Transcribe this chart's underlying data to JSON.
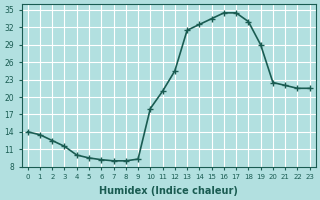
{
  "x": [
    0,
    1,
    2,
    3,
    4,
    5,
    6,
    7,
    8,
    9,
    10,
    11,
    12,
    13,
    14,
    15,
    16,
    17,
    18,
    19,
    20,
    21,
    22,
    23
  ],
  "y": [
    14.0,
    13.5,
    12.5,
    11.5,
    10.0,
    9.5,
    9.2,
    9.0,
    9.0,
    9.3,
    18.0,
    21.0,
    24.5,
    31.5,
    32.5,
    33.5,
    34.5,
    34.5,
    33.0,
    29.0,
    22.5,
    22.0,
    21.5,
    21.5
  ],
  "xlim": [
    -0.5,
    23.5
  ],
  "ylim": [
    8,
    36
  ],
  "yticks": [
    8,
    11,
    14,
    17,
    20,
    23,
    26,
    29,
    32,
    35
  ],
  "xticks": [
    0,
    1,
    2,
    3,
    4,
    5,
    6,
    7,
    8,
    9,
    10,
    11,
    12,
    13,
    14,
    15,
    16,
    17,
    18,
    19,
    20,
    21,
    22,
    23
  ],
  "xlabel": "Humidex (Indice chaleur)",
  "line_color": "#1a5c52",
  "marker": "+",
  "bg_color": "#b2e0e0",
  "grid_color": "#ffffff",
  "tick_color": "#1a5c52",
  "label_color": "#1a5c52",
  "xlabel_color": "#1a5c52",
  "marker_size": 4,
  "line_width": 1.2
}
